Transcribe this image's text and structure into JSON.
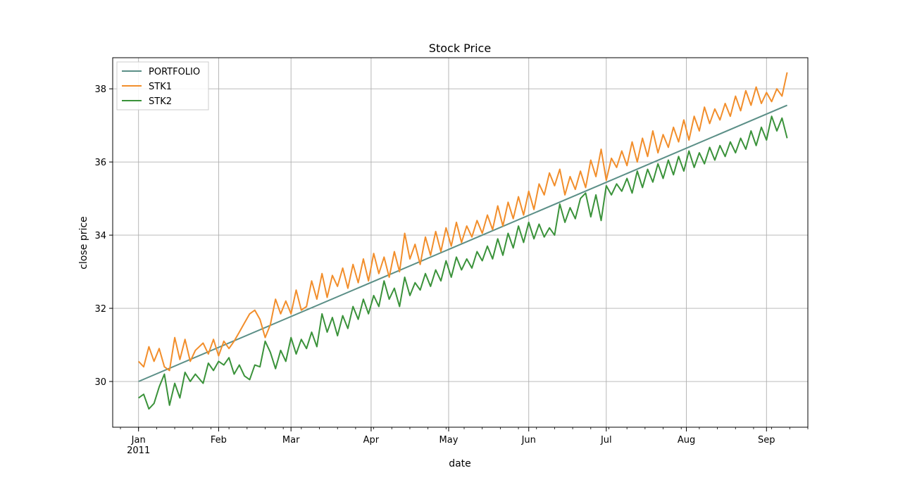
{
  "chart_data": {
    "type": "line",
    "title": "Stock Price",
    "xlabel": "date",
    "ylabel": "close price",
    "x_range": [
      "2010-12-22",
      "2011-09-17"
    ],
    "ylim": [
      28.75,
      38.85
    ],
    "grid": true,
    "legend_position": "top-left",
    "x_ticks": [
      {
        "date": "2011-01-01",
        "label": "Jan",
        "sublabel": "2011"
      },
      {
        "date": "2011-02-01",
        "label": "Feb"
      },
      {
        "date": "2011-03-01",
        "label": "Mar"
      },
      {
        "date": "2011-04-01",
        "label": "Apr"
      },
      {
        "date": "2011-05-01",
        "label": "May"
      },
      {
        "date": "2011-06-01",
        "label": "Jun"
      },
      {
        "date": "2011-07-01",
        "label": "Jul"
      },
      {
        "date": "2011-08-01",
        "label": "Aug"
      },
      {
        "date": "2011-09-01",
        "label": "Sep"
      }
    ],
    "y_ticks": [
      30,
      32,
      34,
      36,
      38
    ],
    "series": [
      {
        "name": "PORTFOLIO",
        "color": "#5b8f87",
        "points": [
          [
            "2011-01-01",
            30.0
          ],
          [
            "2011-09-09",
            37.55
          ]
        ]
      },
      {
        "name": "STK1",
        "color": "#f28e2b",
        "points": [
          [
            "2011-01-01",
            30.55
          ],
          [
            "2011-01-03",
            30.4
          ],
          [
            "2011-01-05",
            30.95
          ],
          [
            "2011-01-07",
            30.55
          ],
          [
            "2011-01-09",
            30.9
          ],
          [
            "2011-01-11",
            30.4
          ],
          [
            "2011-01-13",
            30.3
          ],
          [
            "2011-01-15",
            31.2
          ],
          [
            "2011-01-17",
            30.6
          ],
          [
            "2011-01-19",
            31.15
          ],
          [
            "2011-01-21",
            30.55
          ],
          [
            "2011-01-23",
            30.85
          ],
          [
            "2011-01-26",
            31.05
          ],
          [
            "2011-01-28",
            30.75
          ],
          [
            "2011-01-30",
            31.15
          ],
          [
            "2011-02-01",
            30.7
          ],
          [
            "2011-02-03",
            31.1
          ],
          [
            "2011-02-05",
            30.9
          ],
          [
            "2011-02-07",
            31.1
          ],
          [
            "2011-02-09",
            31.35
          ],
          [
            "2011-02-11",
            31.6
          ],
          [
            "2011-02-13",
            31.85
          ],
          [
            "2011-02-15",
            31.95
          ],
          [
            "2011-02-17",
            31.7
          ],
          [
            "2011-02-19",
            31.2
          ],
          [
            "2011-02-21",
            31.55
          ],
          [
            "2011-02-23",
            32.25
          ],
          [
            "2011-02-25",
            31.85
          ],
          [
            "2011-02-27",
            32.2
          ],
          [
            "2011-03-01",
            31.85
          ],
          [
            "2011-03-03",
            32.5
          ],
          [
            "2011-03-05",
            31.95
          ],
          [
            "2011-03-07",
            32.05
          ],
          [
            "2011-03-09",
            32.75
          ],
          [
            "2011-03-11",
            32.25
          ],
          [
            "2011-03-13",
            32.95
          ],
          [
            "2011-03-15",
            32.3
          ],
          [
            "2011-03-17",
            32.9
          ],
          [
            "2011-03-19",
            32.6
          ],
          [
            "2011-03-21",
            33.1
          ],
          [
            "2011-03-23",
            32.55
          ],
          [
            "2011-03-25",
            33.2
          ],
          [
            "2011-03-27",
            32.7
          ],
          [
            "2011-03-29",
            33.35
          ],
          [
            "2011-03-31",
            32.75
          ],
          [
            "2011-04-02",
            33.5
          ],
          [
            "2011-04-04",
            32.95
          ],
          [
            "2011-04-06",
            33.4
          ],
          [
            "2011-04-08",
            32.85
          ],
          [
            "2011-04-10",
            33.55
          ],
          [
            "2011-04-12",
            33.0
          ],
          [
            "2011-04-14",
            34.05
          ],
          [
            "2011-04-16",
            33.35
          ],
          [
            "2011-04-18",
            33.75
          ],
          [
            "2011-04-20",
            33.2
          ],
          [
            "2011-04-22",
            33.95
          ],
          [
            "2011-04-24",
            33.45
          ],
          [
            "2011-04-26",
            34.1
          ],
          [
            "2011-04-28",
            33.55
          ],
          [
            "2011-04-30",
            34.2
          ],
          [
            "2011-05-02",
            33.7
          ],
          [
            "2011-05-04",
            34.35
          ],
          [
            "2011-05-06",
            33.8
          ],
          [
            "2011-05-08",
            34.25
          ],
          [
            "2011-05-10",
            33.95
          ],
          [
            "2011-05-12",
            34.4
          ],
          [
            "2011-05-14",
            34.05
          ],
          [
            "2011-05-16",
            34.55
          ],
          [
            "2011-05-18",
            34.15
          ],
          [
            "2011-05-20",
            34.8
          ],
          [
            "2011-05-22",
            34.25
          ],
          [
            "2011-05-24",
            34.9
          ],
          [
            "2011-05-26",
            34.45
          ],
          [
            "2011-05-28",
            35.05
          ],
          [
            "2011-05-30",
            34.55
          ],
          [
            "2011-06-01",
            35.2
          ],
          [
            "2011-06-03",
            34.7
          ],
          [
            "2011-06-05",
            35.4
          ],
          [
            "2011-06-07",
            35.1
          ],
          [
            "2011-06-09",
            35.7
          ],
          [
            "2011-06-11",
            35.35
          ],
          [
            "2011-06-13",
            35.8
          ],
          [
            "2011-06-15",
            35.1
          ],
          [
            "2011-06-17",
            35.6
          ],
          [
            "2011-06-19",
            35.25
          ],
          [
            "2011-06-21",
            35.75
          ],
          [
            "2011-06-23",
            35.3
          ],
          [
            "2011-06-25",
            36.05
          ],
          [
            "2011-06-27",
            35.6
          ],
          [
            "2011-06-29",
            36.35
          ],
          [
            "2011-07-01",
            35.5
          ],
          [
            "2011-07-03",
            36.1
          ],
          [
            "2011-07-05",
            35.85
          ],
          [
            "2011-07-07",
            36.3
          ],
          [
            "2011-07-09",
            35.9
          ],
          [
            "2011-07-11",
            36.55
          ],
          [
            "2011-07-13",
            36.0
          ],
          [
            "2011-07-15",
            36.65
          ],
          [
            "2011-07-17",
            36.15
          ],
          [
            "2011-07-19",
            36.85
          ],
          [
            "2011-07-21",
            36.25
          ],
          [
            "2011-07-23",
            36.75
          ],
          [
            "2011-07-25",
            36.4
          ],
          [
            "2011-07-27",
            36.95
          ],
          [
            "2011-07-29",
            36.55
          ],
          [
            "2011-07-31",
            37.15
          ],
          [
            "2011-08-02",
            36.6
          ],
          [
            "2011-08-04",
            37.25
          ],
          [
            "2011-08-06",
            36.85
          ],
          [
            "2011-08-08",
            37.5
          ],
          [
            "2011-08-10",
            37.05
          ],
          [
            "2011-08-12",
            37.45
          ],
          [
            "2011-08-14",
            37.15
          ],
          [
            "2011-08-16",
            37.6
          ],
          [
            "2011-08-18",
            37.25
          ],
          [
            "2011-08-20",
            37.8
          ],
          [
            "2011-08-22",
            37.4
          ],
          [
            "2011-08-24",
            37.95
          ],
          [
            "2011-08-26",
            37.55
          ],
          [
            "2011-08-28",
            38.05
          ],
          [
            "2011-08-30",
            37.6
          ],
          [
            "2011-09-01",
            37.9
          ],
          [
            "2011-09-03",
            37.65
          ],
          [
            "2011-09-05",
            38.0
          ],
          [
            "2011-09-07",
            37.8
          ],
          [
            "2011-09-09",
            38.45
          ]
        ]
      },
      {
        "name": "STK2",
        "color": "#3a923a",
        "points": [
          [
            "2011-01-01",
            29.55
          ],
          [
            "2011-01-03",
            29.65
          ],
          [
            "2011-01-05",
            29.25
          ],
          [
            "2011-01-07",
            29.4
          ],
          [
            "2011-01-09",
            29.85
          ],
          [
            "2011-01-11",
            30.2
          ],
          [
            "2011-01-13",
            29.35
          ],
          [
            "2011-01-15",
            29.95
          ],
          [
            "2011-01-17",
            29.55
          ],
          [
            "2011-01-19",
            30.25
          ],
          [
            "2011-01-21",
            30.0
          ],
          [
            "2011-01-23",
            30.2
          ],
          [
            "2011-01-26",
            29.95
          ],
          [
            "2011-01-28",
            30.5
          ],
          [
            "2011-01-30",
            30.3
          ],
          [
            "2011-02-01",
            30.55
          ],
          [
            "2011-02-03",
            30.45
          ],
          [
            "2011-02-05",
            30.65
          ],
          [
            "2011-02-07",
            30.2
          ],
          [
            "2011-02-09",
            30.45
          ],
          [
            "2011-02-11",
            30.15
          ],
          [
            "2011-02-13",
            30.05
          ],
          [
            "2011-02-15",
            30.45
          ],
          [
            "2011-02-17",
            30.4
          ],
          [
            "2011-02-19",
            31.1
          ],
          [
            "2011-02-21",
            30.8
          ],
          [
            "2011-02-23",
            30.35
          ],
          [
            "2011-02-25",
            30.85
          ],
          [
            "2011-02-27",
            30.55
          ],
          [
            "2011-03-01",
            31.2
          ],
          [
            "2011-03-03",
            30.75
          ],
          [
            "2011-03-05",
            31.15
          ],
          [
            "2011-03-07",
            30.9
          ],
          [
            "2011-03-09",
            31.35
          ],
          [
            "2011-03-11",
            30.95
          ],
          [
            "2011-03-13",
            31.85
          ],
          [
            "2011-03-15",
            31.35
          ],
          [
            "2011-03-17",
            31.75
          ],
          [
            "2011-03-19",
            31.25
          ],
          [
            "2011-03-21",
            31.8
          ],
          [
            "2011-03-23",
            31.45
          ],
          [
            "2011-03-25",
            32.05
          ],
          [
            "2011-03-27",
            31.7
          ],
          [
            "2011-03-29",
            32.25
          ],
          [
            "2011-03-31",
            31.85
          ],
          [
            "2011-04-02",
            32.35
          ],
          [
            "2011-04-04",
            32.05
          ],
          [
            "2011-04-06",
            32.75
          ],
          [
            "2011-04-08",
            32.25
          ],
          [
            "2011-04-10",
            32.55
          ],
          [
            "2011-04-12",
            32.05
          ],
          [
            "2011-04-14",
            32.85
          ],
          [
            "2011-04-16",
            32.35
          ],
          [
            "2011-04-18",
            32.7
          ],
          [
            "2011-04-20",
            32.5
          ],
          [
            "2011-04-22",
            32.95
          ],
          [
            "2011-04-24",
            32.6
          ],
          [
            "2011-04-26",
            33.05
          ],
          [
            "2011-04-28",
            32.75
          ],
          [
            "2011-04-30",
            33.3
          ],
          [
            "2011-05-02",
            32.85
          ],
          [
            "2011-05-04",
            33.4
          ],
          [
            "2011-05-06",
            33.05
          ],
          [
            "2011-05-08",
            33.35
          ],
          [
            "2011-05-10",
            33.1
          ],
          [
            "2011-05-12",
            33.55
          ],
          [
            "2011-05-14",
            33.3
          ],
          [
            "2011-05-16",
            33.7
          ],
          [
            "2011-05-18",
            33.35
          ],
          [
            "2011-05-20",
            33.9
          ],
          [
            "2011-05-22",
            33.45
          ],
          [
            "2011-05-24",
            34.05
          ],
          [
            "2011-05-26",
            33.65
          ],
          [
            "2011-05-28",
            34.25
          ],
          [
            "2011-05-30",
            33.8
          ],
          [
            "2011-06-01",
            34.35
          ],
          [
            "2011-06-03",
            33.9
          ],
          [
            "2011-06-05",
            34.3
          ],
          [
            "2011-06-07",
            33.95
          ],
          [
            "2011-06-09",
            34.2
          ],
          [
            "2011-06-11",
            34.0
          ],
          [
            "2011-06-13",
            34.85
          ],
          [
            "2011-06-15",
            34.35
          ],
          [
            "2011-06-17",
            34.75
          ],
          [
            "2011-06-19",
            34.45
          ],
          [
            "2011-06-21",
            35.0
          ],
          [
            "2011-06-23",
            35.15
          ],
          [
            "2011-06-25",
            34.5
          ],
          [
            "2011-06-27",
            35.1
          ],
          [
            "2011-06-29",
            34.4
          ],
          [
            "2011-07-01",
            35.35
          ],
          [
            "2011-07-03",
            35.1
          ],
          [
            "2011-07-05",
            35.4
          ],
          [
            "2011-07-07",
            35.2
          ],
          [
            "2011-07-09",
            35.55
          ],
          [
            "2011-07-11",
            35.15
          ],
          [
            "2011-07-13",
            35.75
          ],
          [
            "2011-07-15",
            35.3
          ],
          [
            "2011-07-17",
            35.8
          ],
          [
            "2011-07-19",
            35.45
          ],
          [
            "2011-07-21",
            35.95
          ],
          [
            "2011-07-23",
            35.55
          ],
          [
            "2011-07-25",
            36.05
          ],
          [
            "2011-07-27",
            35.65
          ],
          [
            "2011-07-29",
            36.15
          ],
          [
            "2011-07-31",
            35.75
          ],
          [
            "2011-08-02",
            36.3
          ],
          [
            "2011-08-04",
            35.85
          ],
          [
            "2011-08-06",
            36.25
          ],
          [
            "2011-08-08",
            35.95
          ],
          [
            "2011-08-10",
            36.4
          ],
          [
            "2011-08-12",
            36.05
          ],
          [
            "2011-08-14",
            36.45
          ],
          [
            "2011-08-16",
            36.15
          ],
          [
            "2011-08-18",
            36.55
          ],
          [
            "2011-08-20",
            36.25
          ],
          [
            "2011-08-22",
            36.65
          ],
          [
            "2011-08-24",
            36.35
          ],
          [
            "2011-08-26",
            36.85
          ],
          [
            "2011-08-28",
            36.45
          ],
          [
            "2011-08-30",
            36.95
          ],
          [
            "2011-09-01",
            36.6
          ],
          [
            "2011-09-03",
            37.25
          ],
          [
            "2011-09-05",
            36.85
          ],
          [
            "2011-09-07",
            37.2
          ],
          [
            "2011-09-09",
            36.65
          ]
        ]
      }
    ]
  }
}
